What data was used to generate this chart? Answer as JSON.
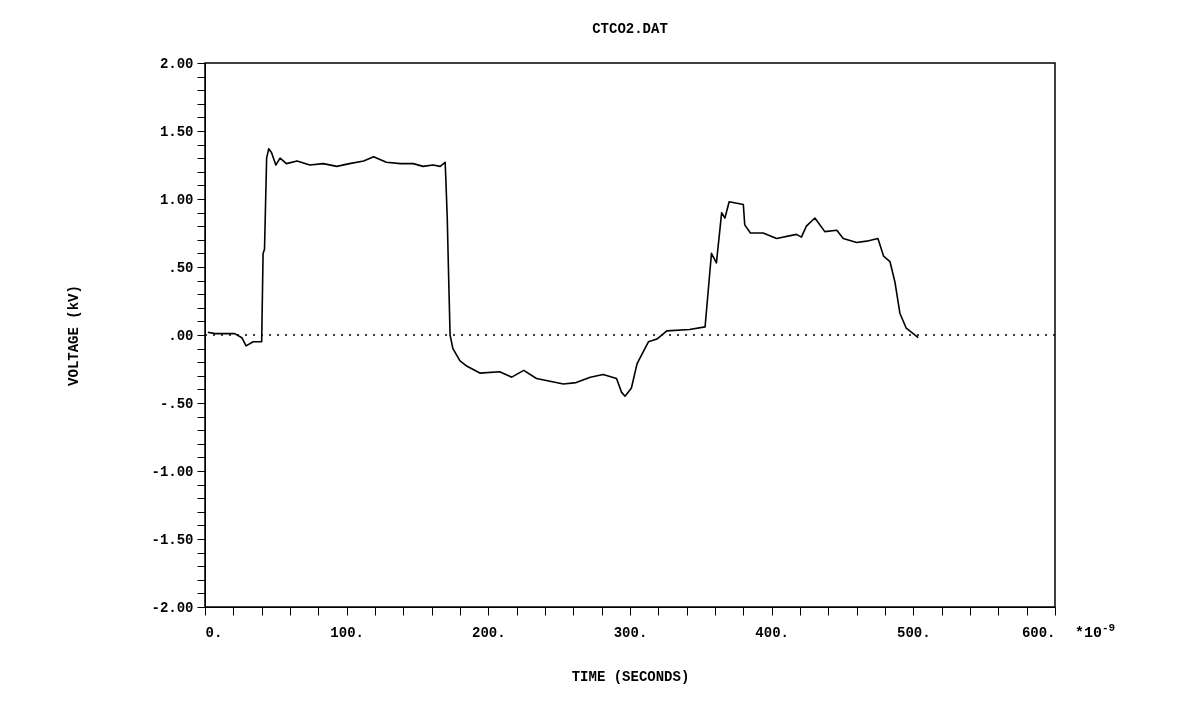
{
  "chart_data": {
    "type": "line",
    "title": "CTCO2.DAT",
    "xlabel": "TIME (SECONDS)",
    "ylabel": "VOLTAGE (kV)",
    "annotations": [
      "*10$^{-9}$"
    ],
    "x": [
      2,
      7,
      21,
      26,
      29,
      34,
      40,
      41,
      42,
      43.5,
      45,
      47,
      50,
      53,
      57.5,
      65,
      74,
      83.5,
      93,
      102,
      112,
      119,
      128,
      138,
      147,
      154,
      161,
      166,
      169.5,
      170,
      171,
      172,
      173,
      175,
      180,
      185,
      194,
      208,
      216.5,
      225,
      234,
      243.5,
      253,
      262,
      272,
      281,
      290.5,
      294,
      296.5,
      301,
      305,
      313,
      319,
      326,
      342,
      353,
      355,
      357.5,
      361,
      364.7,
      367,
      370,
      380,
      381,
      385,
      394,
      403.5,
      417.5,
      421,
      424.5,
      430.5,
      437.5,
      446,
      450.5,
      460,
      467,
      475,
      479,
      483.5,
      487,
      490.5,
      495,
      503.5
    ],
    "series": [
      {
        "color": "#000000",
        "values": [
          0.02,
          0.01,
          0.01,
          -0.02,
          -0.08,
          -0.05,
          -0.05,
          0.6,
          0.63,
          1.3,
          1.37,
          1.34,
          1.25,
          1.3,
          1.26,
          1.28,
          1.25,
          1.26,
          1.24,
          1.26,
          1.28,
          1.31,
          1.27,
          1.26,
          1.26,
          1.24,
          1.25,
          1.24,
          1.27,
          1.15,
          0.86,
          0.42,
          0,
          -0.1,
          -0.19,
          -0.23,
          -0.28,
          -0.27,
          -0.31,
          -0.26,
          -0.32,
          -0.34,
          -0.36,
          -0.35,
          -0.31,
          -0.29,
          -0.32,
          -0.42,
          -0.45,
          -0.39,
          -0.21,
          -0.05,
          -0.03,
          0.03,
          0.04,
          0.06,
          0.3,
          0.6,
          0.53,
          0.9,
          0.86,
          0.98,
          0.96,
          0.81,
          0.75,
          0.75,
          0.71,
          0.74,
          0.72,
          0.8,
          0.86,
          0.76,
          0.77,
          0.71,
          0.68,
          0.69,
          0.71,
          0.58,
          0.54,
          0.39,
          0.16,
          0.05,
          -0.02
        ]
      }
    ],
    "xlim": [
      0,
      600
    ],
    "ylim": [
      -2,
      2
    ],
    "xticks": [
      {
        "value": 0,
        "label": "0."
      },
      {
        "value": 20,
        "label": null
      },
      {
        "value": 40,
        "label": null
      },
      {
        "value": 60,
        "label": null
      },
      {
        "value": 80,
        "label": null
      },
      {
        "value": 100,
        "label": "100."
      },
      {
        "value": 120,
        "label": null
      },
      {
        "value": 140,
        "label": null
      },
      {
        "value": 160,
        "label": null
      },
      {
        "value": 180,
        "label": null
      },
      {
        "value": 200,
        "label": "200."
      },
      {
        "value": 220,
        "label": null
      },
      {
        "value": 240,
        "label": null
      },
      {
        "value": 260,
        "label": null
      },
      {
        "value": 280,
        "label": null
      },
      {
        "value": 300,
        "label": "300."
      },
      {
        "value": 320,
        "label": null
      },
      {
        "value": 340,
        "label": null
      },
      {
        "value": 360,
        "label": null
      },
      {
        "value": 380,
        "label": null
      },
      {
        "value": 400,
        "label": "400."
      },
      {
        "value": 420,
        "label": null
      },
      {
        "value": 440,
        "label": null
      },
      {
        "value": 460,
        "label": null
      },
      {
        "value": 480,
        "label": null
      },
      {
        "value": 500,
        "label": "500."
      },
      {
        "value": 520,
        "label": null
      },
      {
        "value": 540,
        "label": null
      },
      {
        "value": 560,
        "label": null
      },
      {
        "value": 580,
        "label": null
      },
      {
        "value": 600,
        "label": "600."
      }
    ],
    "yticks": [
      {
        "value": -2,
        "label": "-2.00"
      },
      {
        "value": -1.9,
        "label": null
      },
      {
        "value": -1.8,
        "label": null
      },
      {
        "value": -1.7,
        "label": null
      },
      {
        "value": -1.6,
        "label": null
      },
      {
        "value": -1.5,
        "label": "-1.50"
      },
      {
        "value": -1.4,
        "label": null
      },
      {
        "value": -1.3,
        "label": null
      },
      {
        "value": -1.2,
        "label": null
      },
      {
        "value": -1.1,
        "label": null
      },
      {
        "value": -1,
        "label": "-1.00"
      },
      {
        "value": -0.9,
        "label": null
      },
      {
        "value": -0.8,
        "label": null
      },
      {
        "value": -0.7,
        "label": null
      },
      {
        "value": -0.6,
        "label": null
      },
      {
        "value": -0.5,
        "label": "-.50"
      },
      {
        "value": -0.4,
        "label": null
      },
      {
        "value": -0.3,
        "label": null
      },
      {
        "value": -0.2,
        "label": null
      },
      {
        "value": -0.1,
        "label": null
      },
      {
        "value": 0,
        "label": ".00"
      },
      {
        "value": 0.1,
        "label": null
      },
      {
        "value": 0.2,
        "label": null
      },
      {
        "value": 0.3,
        "label": null
      },
      {
        "value": 0.4,
        "label": null
      },
      {
        "value": 0.5,
        "label": ".50"
      },
      {
        "value": 0.6,
        "label": null
      },
      {
        "value": 0.7,
        "label": null
      },
      {
        "value": 0.8,
        "label": null
      },
      {
        "value": 0.9,
        "label": null
      },
      {
        "value": 1,
        "label": "1.00"
      },
      {
        "value": 1.1,
        "label": null
      },
      {
        "value": 1.2,
        "label": null
      },
      {
        "value": 1.3,
        "label": null
      },
      {
        "value": 1.4,
        "label": null
      },
      {
        "value": 1.5,
        "label": "1.50"
      },
      {
        "value": 1.6,
        "label": null
      },
      {
        "value": 1.7,
        "label": null
      },
      {
        "value": 1.8,
        "label": null
      },
      {
        "value": 1.9,
        "label": null
      },
      {
        "value": 2,
        "label": "2.00"
      }
    ],
    "ref_lines": [
      {
        "axis": "y",
        "value": 0,
        "line_style": "dotted"
      }
    ]
  }
}
